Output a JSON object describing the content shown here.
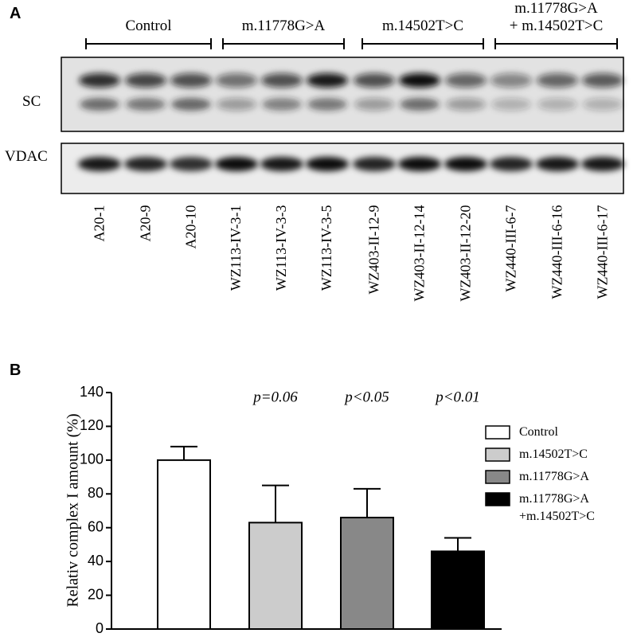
{
  "panel_a": {
    "label": "A",
    "groups": [
      "Control",
      "m.11778G>A",
      "m.14502T>C",
      "m.11778G>A\n+ m.14502T>C"
    ],
    "rows": [
      "SC",
      "VDAC"
    ],
    "lanes": [
      "A20-1",
      "A20-9",
      "A20-10",
      "WZ113-IV-3-1",
      "WZ113-IV-3-3",
      "WZ113-IV-3-5",
      "WZ403-II-12-9",
      "WZ403-II-12-14",
      "WZ403-II-12-20",
      "WZ440-III-6-7",
      "WZ440-III-6-16",
      "WZ440-III-6-17"
    ]
  },
  "chart_data": {
    "type": "bar",
    "panel_label": "B",
    "ylabel": "Relativ complex I amount (%)",
    "ylim": [
      0,
      140
    ],
    "yticks": [
      0,
      20,
      40,
      60,
      80,
      100,
      120,
      140
    ],
    "series": [
      {
        "name": "Control",
        "color": "#ffffff",
        "values": [
          100
        ],
        "errors": [
          8
        ]
      },
      {
        "name": "m.14502T>C",
        "color": "#cccccc",
        "values": [
          63
        ],
        "errors": [
          22
        ],
        "annotation": "p=0.06"
      },
      {
        "name": "m.11778G>A",
        "color": "#888888",
        "values": [
          66
        ],
        "errors": [
          17
        ],
        "annotation": "p<0.05"
      },
      {
        "name": "m.11778G>A\n+m.14502T>C",
        "color": "#000000",
        "values": [
          46
        ],
        "errors": [
          8
        ],
        "annotation": "p<0.01"
      }
    ]
  }
}
